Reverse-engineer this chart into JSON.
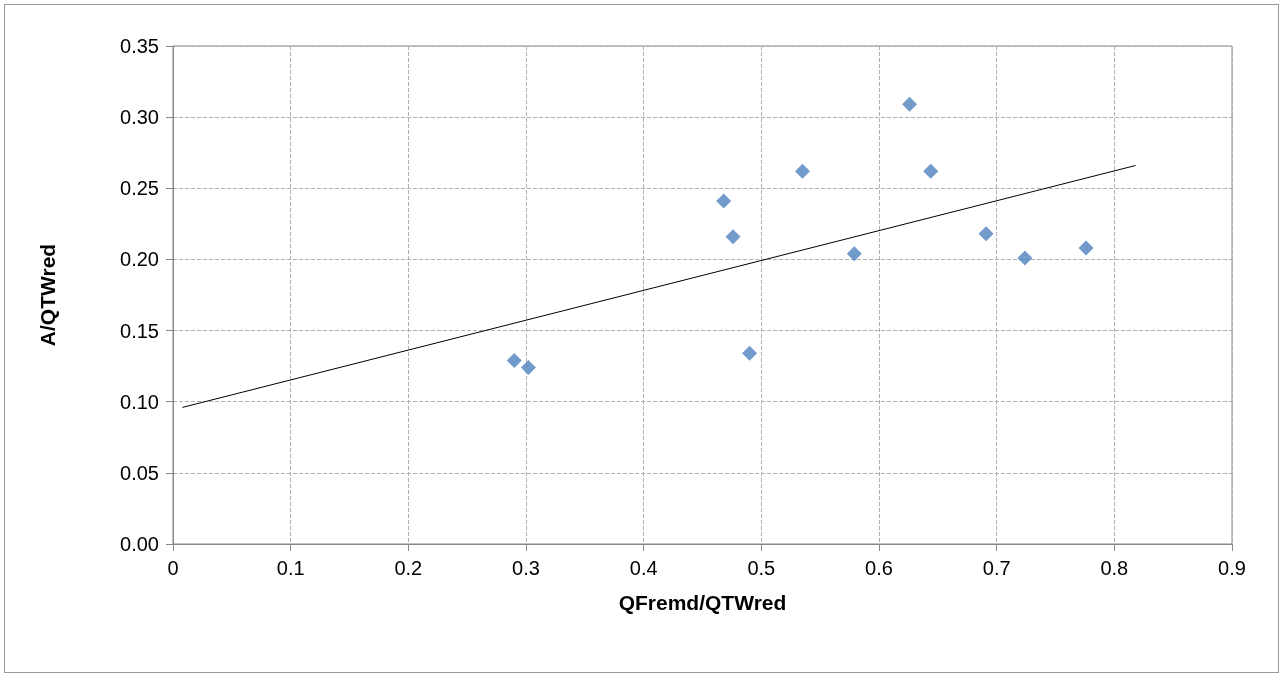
{
  "chart_data": {
    "type": "scatter",
    "xlabel": "QFremd/QTWred",
    "ylabel": "A/QTWred",
    "xlim": [
      0,
      0.9
    ],
    "xticks": [
      0,
      0.1,
      0.2,
      0.3,
      0.4,
      0.5,
      0.6,
      0.7,
      0.8,
      0.9
    ],
    "ylim": [
      0,
      0.35
    ],
    "yticks": [
      {
        "value": 0,
        "label": "0.00"
      },
      {
        "value": 0.05,
        "label": "0.05"
      },
      {
        "value": 0.1,
        "label": "0.10"
      },
      {
        "value": 0.15,
        "label": "0.15"
      },
      {
        "value": 0.2,
        "label": "0.20"
      },
      {
        "value": 0.25,
        "label": "0.25"
      },
      {
        "value": 0.3,
        "label": "0.30"
      },
      {
        "value": 0.35,
        "label": "0.35"
      }
    ],
    "grid": true,
    "marker": "diamond",
    "series": [
      {
        "color": "#4f81bd",
        "x": [
          0.29,
          0.302,
          0.468,
          0.476,
          0.49,
          0.535,
          0.579,
          0.626,
          0.644,
          0.691,
          0.724,
          0.776
        ],
        "values": [
          0.129,
          0.124,
          0.241,
          0.216,
          0.134,
          0.262,
          0.204,
          0.309,
          0.262,
          0.218,
          0.201,
          0.208
        ]
      },
      {
        "type": "line",
        "color": "#000000",
        "marker": "none",
        "line_style": "solid",
        "x": [
          0.008,
          0.818
        ],
        "values": [
          0.096,
          0.266
        ]
      }
    ]
  }
}
